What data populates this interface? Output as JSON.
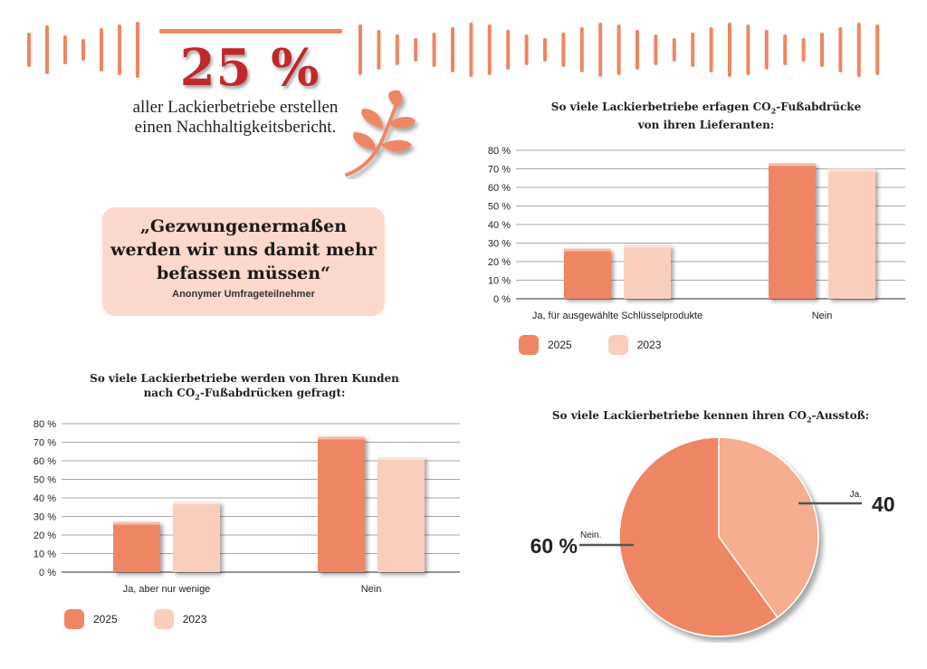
{
  "headline": {
    "value": "25 %",
    "caption_line1": "aller Lackierbetriebe erstellen",
    "caption_line2": "einen Nachhaltigkeitsbericht."
  },
  "quote": {
    "line1": "„Gezwungenermaßen",
    "line2": "werden wir uns damit mehr",
    "line3": "befassen müssen“",
    "author": "Anonymer Umfrageteilnehmer"
  },
  "colors": {
    "accent": "#ef8663",
    "series_2025": "#ef8663",
    "series_2023": "#f9cfbc",
    "pie_nein": "#ef8663",
    "pie_ja": "#f6ad90",
    "headline": "#c0282b"
  },
  "icons": {
    "leaf": "leaf-branch-icon"
  },
  "chart_data": [
    {
      "type": "bar",
      "title_line1": "So viele Lackierbetriebe erfagen CO",
      "title_sub": "2",
      "title_after": "-Fußabdrücke",
      "title_line2": "von ihren Lieferanten:",
      "categories": [
        "Ja, für ausgewählte Schlüsselprodukte",
        "Nein"
      ],
      "series": [
        {
          "name": "2025",
          "values": [
            27,
            73
          ]
        },
        {
          "name": "2023",
          "values": [
            29,
            70
          ]
        }
      ],
      "ylim": [
        0,
        80
      ],
      "yticks": [
        "0 %",
        "10 %",
        "20 %",
        "30 %",
        "40 %",
        "50 %",
        "60 %",
        "70 %",
        "80 %"
      ],
      "grid": true,
      "legend": "bottom-left"
    },
    {
      "type": "bar",
      "title_line1": "So viele Lackierbetriebe werden von Ihren Kunden",
      "title_line2a": "nach CO",
      "title_sub": "2",
      "title_line2b": "-Fußabdrücken gefragt:",
      "categories": [
        "Ja, aber nur wenige",
        "Nein"
      ],
      "series": [
        {
          "name": "2025",
          "values": [
            27,
            73
          ]
        },
        {
          "name": "2023",
          "values": [
            38,
            62
          ]
        }
      ],
      "ylim": [
        0,
        80
      ],
      "yticks": [
        "0 %",
        "10 %",
        "20 %",
        "30 %",
        "40 %",
        "50 %",
        "60 %",
        "70 %",
        "80 %"
      ],
      "grid": true,
      "legend": "bottom-left"
    },
    {
      "type": "pie",
      "title_before": "So viele Lackierbetriebe kennen ihren CO",
      "title_sub": "2",
      "title_after": "-Ausstoß:",
      "slices": [
        {
          "label": "Ja.",
          "value": 40,
          "value_label": "40"
        },
        {
          "label": "Nein.",
          "value": 60,
          "value_label": "60 %"
        }
      ]
    }
  ]
}
